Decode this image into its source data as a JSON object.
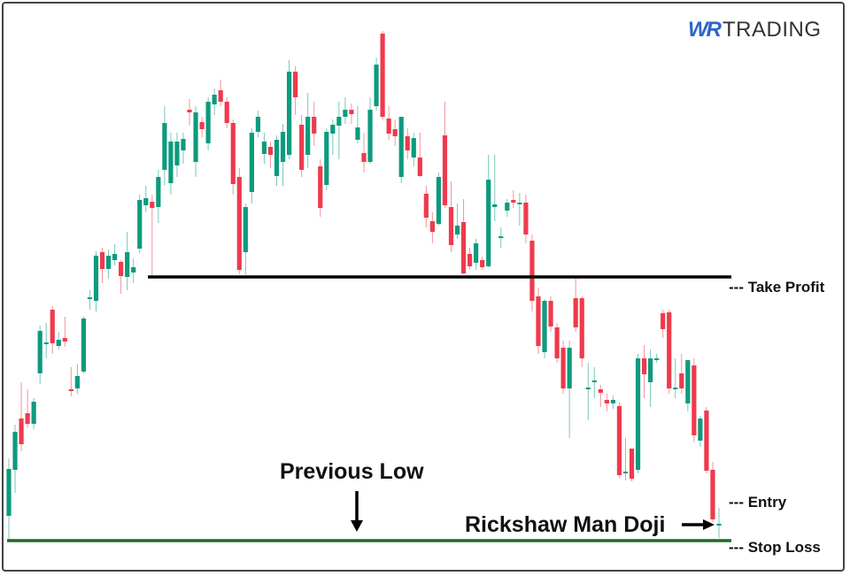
{
  "logo": {
    "brand_mark": "WR",
    "brand_text": "TRADING"
  },
  "annotations": {
    "take_profit": "--- Take Profit",
    "entry": "--- Entry",
    "stop_loss": "--- Stop Loss",
    "previous_low": "Previous Low",
    "rickshaw_man_doji": "Rickshaw Man Doji"
  },
  "colors": {
    "up": "#0e9a7e",
    "down": "#ef3a4c",
    "take_profit_line": "#000000",
    "stop_loss_line": "#1f6b2a",
    "brand": "#2f63c8"
  },
  "chart_data": {
    "type": "candlestick",
    "title": "",
    "xlabel": "",
    "ylabel": "",
    "axes_visible": false,
    "grid": false,
    "ohlc_format": [
      "open",
      "high",
      "low",
      "close"
    ],
    "candles": [
      [
        67,
        132,
        40,
        120
      ],
      [
        119,
        170,
        93,
        162
      ],
      [
        177,
        218,
        140,
        148
      ],
      [
        183,
        210,
        166,
        171
      ],
      [
        171,
        200,
        165,
        196
      ],
      [
        228,
        282,
        216,
        276
      ],
      [
        263,
        285,
        245,
        263
      ],
      [
        300,
        304,
        250,
        262
      ],
      [
        259,
        275,
        255,
        266
      ],
      [
        268,
        292,
        258,
        264
      ],
      [
        210,
        235,
        202,
        208
      ],
      [
        211,
        239,
        205,
        225
      ],
      [
        230,
        292,
        228,
        290
      ],
      [
        314,
        322,
        300,
        314
      ],
      [
        310,
        366,
        298,
        361
      ],
      [
        365,
        370,
        330,
        346
      ],
      [
        346,
        368,
        335,
        361
      ],
      [
        356,
        374,
        350,
        363
      ],
      [
        354,
        356,
        318,
        338
      ],
      [
        337,
        388,
        322,
        365
      ],
      [
        342,
        358,
        330,
        348
      ],
      [
        369,
        430,
        364,
        424
      ],
      [
        418,
        440,
        410,
        426
      ],
      [
        422,
        430,
        338,
        415
      ],
      [
        416,
        458,
        398,
        450
      ],
      [
        458,
        530,
        440,
        511
      ],
      [
        443,
        500,
        430,
        490
      ],
      [
        463,
        500,
        450,
        490
      ],
      [
        480,
        500,
        465,
        493
      ],
      [
        526,
        538,
        508,
        523
      ],
      [
        467,
        530,
        450,
        523
      ],
      [
        512,
        518,
        495,
        504
      ],
      [
        488,
        540,
        480,
        535
      ],
      [
        532,
        550,
        520,
        543
      ],
      [
        548,
        560,
        530,
        535
      ],
      [
        535,
        540,
        505,
        511
      ],
      [
        511,
        515,
        430,
        442
      ],
      [
        450,
        460,
        340,
        345
      ],
      [
        365,
        420,
        340,
        416
      ],
      [
        433,
        505,
        420,
        500
      ],
      [
        501,
        525,
        495,
        518
      ],
      [
        476,
        500,
        465,
        490
      ],
      [
        484,
        490,
        460,
        475
      ],
      [
        451,
        497,
        440,
        492
      ],
      [
        467,
        510,
        440,
        501
      ],
      [
        475,
        582,
        470,
        569
      ],
      [
        569,
        575,
        520,
        540
      ],
      [
        509,
        520,
        450,
        458
      ],
      [
        475,
        545,
        460,
        518
      ],
      [
        518,
        535,
        485,
        499
      ],
      [
        462,
        470,
        405,
        415
      ],
      [
        441,
        505,
        435,
        501
      ],
      [
        499,
        515,
        475,
        509
      ],
      [
        508,
        535,
        470,
        518
      ],
      [
        518,
        540,
        510,
        526
      ],
      [
        526,
        533,
        510,
        521
      ],
      [
        492,
        530,
        488,
        506
      ],
      [
        477,
        500,
        455,
        467
      ],
      [
        467,
        540,
        465,
        526
      ],
      [
        530,
        585,
        525,
        577
      ],
      [
        612,
        615,
        515,
        518
      ],
      [
        516,
        530,
        492,
        499
      ],
      [
        504,
        515,
        485,
        496
      ],
      [
        450,
        518,
        443,
        518
      ],
      [
        496,
        505,
        470,
        480
      ],
      [
        472,
        500,
        462,
        494
      ],
      [
        472,
        500,
        450,
        451
      ],
      [
        431,
        440,
        393,
        404
      ],
      [
        400,
        410,
        375,
        388
      ],
      [
        397,
        455,
        395,
        450
      ],
      [
        497,
        535,
        415,
        418
      ],
      [
        416,
        445,
        365,
        373
      ],
      [
        385,
        420,
        380,
        395
      ],
      [
        399,
        425,
        340,
        341
      ],
      [
        363,
        370,
        345,
        349
      ],
      [
        353,
        380,
        345,
        375
      ],
      [
        356,
        360,
        345,
        348
      ],
      [
        349,
        475,
        348,
        447
      ],
      [
        416,
        475,
        400,
        419
      ],
      [
        382,
        393,
        370,
        383
      ],
      [
        412,
        425,
        405,
        421
      ],
      [
        424,
        435,
        415,
        421
      ],
      [
        421,
        432,
        395,
        421
      ],
      [
        421,
        430,
        375,
        385
      ],
      [
        378,
        385,
        298,
        310
      ],
      [
        315,
        325,
        250,
        259
      ],
      [
        252,
        312,
        245,
        310
      ],
      [
        310,
        315,
        275,
        281
      ],
      [
        280,
        285,
        240,
        245
      ],
      [
        257,
        265,
        205,
        211
      ],
      [
        211,
        265,
        155,
        257
      ],
      [
        313,
        335,
        275,
        280
      ],
      [
        313,
        315,
        235,
        245
      ],
      [
        212,
        240,
        175,
        212
      ],
      [
        220,
        235,
        200,
        220
      ],
      [
        210,
        215,
        190,
        206
      ],
      [
        198,
        205,
        185,
        194
      ],
      [
        194,
        203,
        188,
        198
      ],
      [
        191,
        195,
        110,
        113
      ],
      [
        117,
        155,
        107,
        117
      ],
      [
        143,
        143,
        106,
        109
      ],
      [
        119,
        250,
        115,
        245
      ],
      [
        245,
        260,
        200,
        227
      ],
      [
        218,
        255,
        190,
        245
      ],
      [
        245,
        250,
        240,
        245
      ],
      [
        296,
        300,
        268,
        278
      ],
      [
        297,
        300,
        205,
        211
      ],
      [
        212,
        245,
        200,
        212
      ],
      [
        228,
        250,
        205,
        211
      ],
      [
        194,
        243,
        185,
        243
      ],
      [
        237,
        245,
        150,
        158
      ],
      [
        152,
        180,
        145,
        177
      ],
      [
        186,
        190,
        115,
        118
      ],
      [
        119,
        128,
        60,
        63
      ],
      [
        58,
        76,
        42,
        58
      ]
    ],
    "levels": {
      "take_profit": 337,
      "stop_loss": 39
    }
  }
}
